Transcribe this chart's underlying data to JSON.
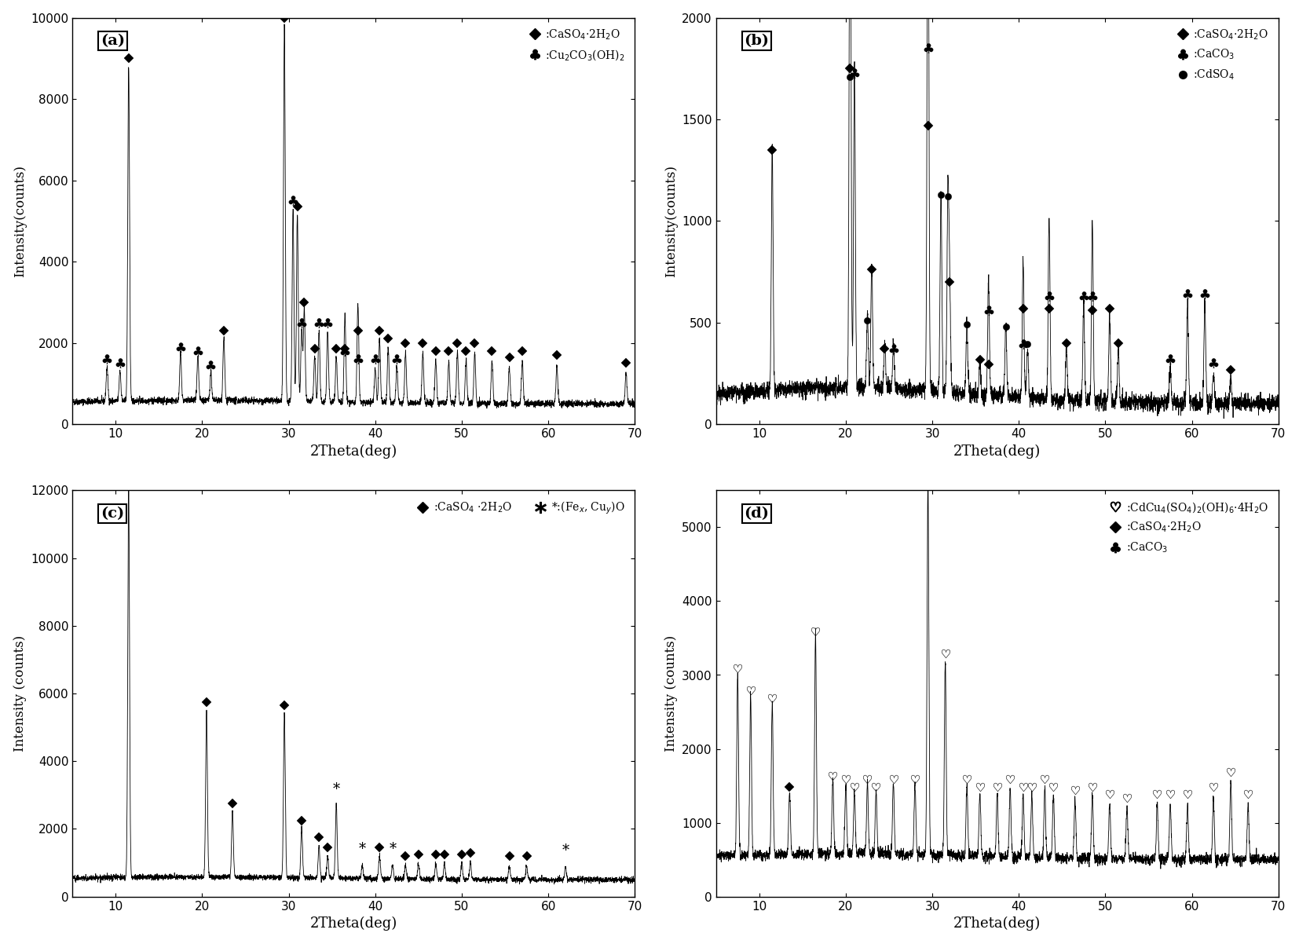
{
  "panels": [
    {
      "label": "(a)",
      "ylim": [
        0,
        10000
      ],
      "yticks": [
        0,
        2000,
        4000,
        6000,
        8000,
        10000
      ],
      "ylabel": "Intensity(counts)",
      "xlabel": "2Theta(deg)",
      "legend": [
        {
          "marker": "D",
          "label": ":CaSO$_4$$\\cdot$2H$_2$O"
        },
        {
          "marker": "club",
          "label": ":Cu$_2$CO$_3$(OH)$_2$"
        }
      ],
      "base": 500,
      "noise": 40,
      "peaks_diamond": [
        [
          11.5,
          8750
        ],
        [
          22.5,
          2050
        ],
        [
          29.5,
          9750
        ],
        [
          31.0,
          5100
        ],
        [
          31.8,
          2750
        ],
        [
          33.0,
          1600
        ],
        [
          35.5,
          1600
        ],
        [
          36.5,
          1600
        ],
        [
          38.0,
          2050
        ],
        [
          40.5,
          2050
        ],
        [
          41.5,
          1850
        ],
        [
          43.5,
          1750
        ],
        [
          45.5,
          1750
        ],
        [
          47.0,
          1550
        ],
        [
          48.5,
          1550
        ],
        [
          49.5,
          1750
        ],
        [
          50.5,
          1550
        ],
        [
          51.5,
          1750
        ],
        [
          53.5,
          1550
        ],
        [
          55.5,
          1400
        ],
        [
          57.0,
          1550
        ],
        [
          61.0,
          1450
        ],
        [
          69.0,
          1250
        ]
      ],
      "peaks_club": [
        [
          9.0,
          1350
        ],
        [
          10.5,
          1250
        ],
        [
          17.5,
          1650
        ],
        [
          19.5,
          1550
        ],
        [
          21.0,
          1200
        ],
        [
          30.5,
          5250
        ],
        [
          31.5,
          2250
        ],
        [
          33.5,
          2250
        ],
        [
          34.5,
          2250
        ],
        [
          36.5,
          1550
        ],
        [
          38.0,
          1350
        ],
        [
          40.0,
          1350
        ],
        [
          42.5,
          1350
        ]
      ]
    },
    {
      "label": "(b)",
      "ylim": [
        0,
        2000
      ],
      "yticks": [
        0,
        500,
        1000,
        1500,
        2000
      ],
      "ylabel": "Intensity(counts)",
      "xlabel": "2Theta(deg)",
      "legend": [
        {
          "marker": "D",
          "label": ":CaSO$_4$$\\cdot$2H$_2$O"
        },
        {
          "marker": "club",
          "label": ":CaCO$_3$"
        },
        {
          "marker": "o",
          "label": ":CdSO$_4$"
        }
      ],
      "base": 100,
      "noise": 20,
      "peaks_diamond": [
        [
          11.5,
          1300
        ],
        [
          20.5,
          1700
        ],
        [
          23.0,
          710
        ],
        [
          24.5,
          320
        ],
        [
          29.5,
          1420
        ],
        [
          32.0,
          650
        ],
        [
          35.5,
          265
        ],
        [
          36.5,
          245
        ],
        [
          40.5,
          520
        ],
        [
          43.5,
          520
        ],
        [
          45.5,
          350
        ],
        [
          48.5,
          510
        ],
        [
          50.5,
          520
        ],
        [
          51.5,
          350
        ],
        [
          64.5,
          215
        ]
      ],
      "peaks_club": [
        [
          21.0,
          1680
        ],
        [
          25.5,
          320
        ],
        [
          29.5,
          1800
        ],
        [
          36.5,
          510
        ],
        [
          40.5,
          345
        ],
        [
          43.5,
          580
        ],
        [
          47.5,
          580
        ],
        [
          48.5,
          580
        ],
        [
          57.5,
          270
        ],
        [
          59.5,
          590
        ],
        [
          61.5,
          590
        ],
        [
          62.5,
          250
        ]
      ],
      "peaks_circle": [
        [
          20.5,
          1660
        ],
        [
          22.5,
          460
        ],
        [
          31.0,
          1080
        ],
        [
          31.8,
          1070
        ],
        [
          34.0,
          440
        ],
        [
          38.5,
          430
        ],
        [
          41.0,
          345
        ]
      ]
    },
    {
      "label": "(c)",
      "ylim": [
        0,
        12000
      ],
      "yticks": [
        0,
        2000,
        4000,
        6000,
        8000,
        10000,
        12000
      ],
      "ylabel": "Intensity (counts)",
      "xlabel": "2Theta(deg)",
      "legend": [
        {
          "marker": "D",
          "label": ":CaSO$_4$ $\\cdot$2H$_2$O"
        },
        {
          "marker": "star_text",
          "label": "*:(Fe$_x$, Cu$_y$)O"
        }
      ],
      "base": 500,
      "noise": 40,
      "peaks_diamond": [
        [
          11.5,
          11950
        ],
        [
          20.5,
          5450
        ],
        [
          23.5,
          2450
        ],
        [
          29.5,
          5350
        ],
        [
          31.5,
          1950
        ],
        [
          33.5,
          1450
        ],
        [
          34.5,
          1150
        ],
        [
          40.5,
          1150
        ],
        [
          43.5,
          900
        ],
        [
          45.0,
          950
        ],
        [
          47.0,
          950
        ],
        [
          48.0,
          950
        ],
        [
          50.0,
          950
        ],
        [
          51.0,
          1000
        ],
        [
          55.5,
          900
        ],
        [
          57.5,
          900
        ]
      ],
      "peaks_star": [
        [
          35.5,
          2650
        ],
        [
          38.5,
          900
        ],
        [
          42.0,
          900
        ],
        [
          62.0,
          850
        ]
      ]
    },
    {
      "label": "(d)",
      "ylim": [
        0,
        5500
      ],
      "yticks": [
        0,
        1000,
        2000,
        3000,
        4000,
        5000
      ],
      "ylabel": "Intensity (counts)",
      "xlabel": "2Theta(deg)",
      "legend": [
        {
          "marker": "heart",
          "label": ":CdCu$_4$(SO$_4$)$_2$(OH)$_6$$\\cdot$4H$_2$O"
        },
        {
          "marker": "D",
          "label": ":CaSO$_4$$\\cdot$2H$_2$O"
        },
        {
          "marker": "club",
          "label": ":CaCO$_3$"
        }
      ],
      "base": 500,
      "noise": 35,
      "peaks_heart": [
        [
          7.5,
          2950
        ],
        [
          9.0,
          2650
        ],
        [
          11.5,
          2550
        ],
        [
          16.5,
          3450
        ],
        [
          18.5,
          1500
        ],
        [
          20.0,
          1450
        ],
        [
          21.0,
          1350
        ],
        [
          22.5,
          1450
        ],
        [
          23.5,
          1350
        ],
        [
          25.5,
          1450
        ],
        [
          28.0,
          1450
        ],
        [
          29.5,
          5550
        ],
        [
          31.5,
          3150
        ],
        [
          34.0,
          1450
        ],
        [
          35.5,
          1350
        ],
        [
          37.5,
          1350
        ],
        [
          39.0,
          1450
        ],
        [
          40.5,
          1350
        ],
        [
          41.5,
          1350
        ],
        [
          43.0,
          1450
        ],
        [
          44.0,
          1350
        ],
        [
          46.5,
          1300
        ],
        [
          48.5,
          1350
        ],
        [
          50.5,
          1250
        ],
        [
          52.5,
          1200
        ],
        [
          56.0,
          1250
        ],
        [
          57.5,
          1250
        ],
        [
          59.5,
          1250
        ],
        [
          62.5,
          1350
        ],
        [
          64.5,
          1550
        ],
        [
          66.5,
          1250
        ]
      ],
      "peaks_diamond": [
        [
          13.5,
          1350
        ]
      ],
      "peaks_club": []
    }
  ],
  "xlim": [
    5,
    70
  ],
  "xticks": [
    10,
    20,
    30,
    40,
    50,
    60,
    70
  ]
}
